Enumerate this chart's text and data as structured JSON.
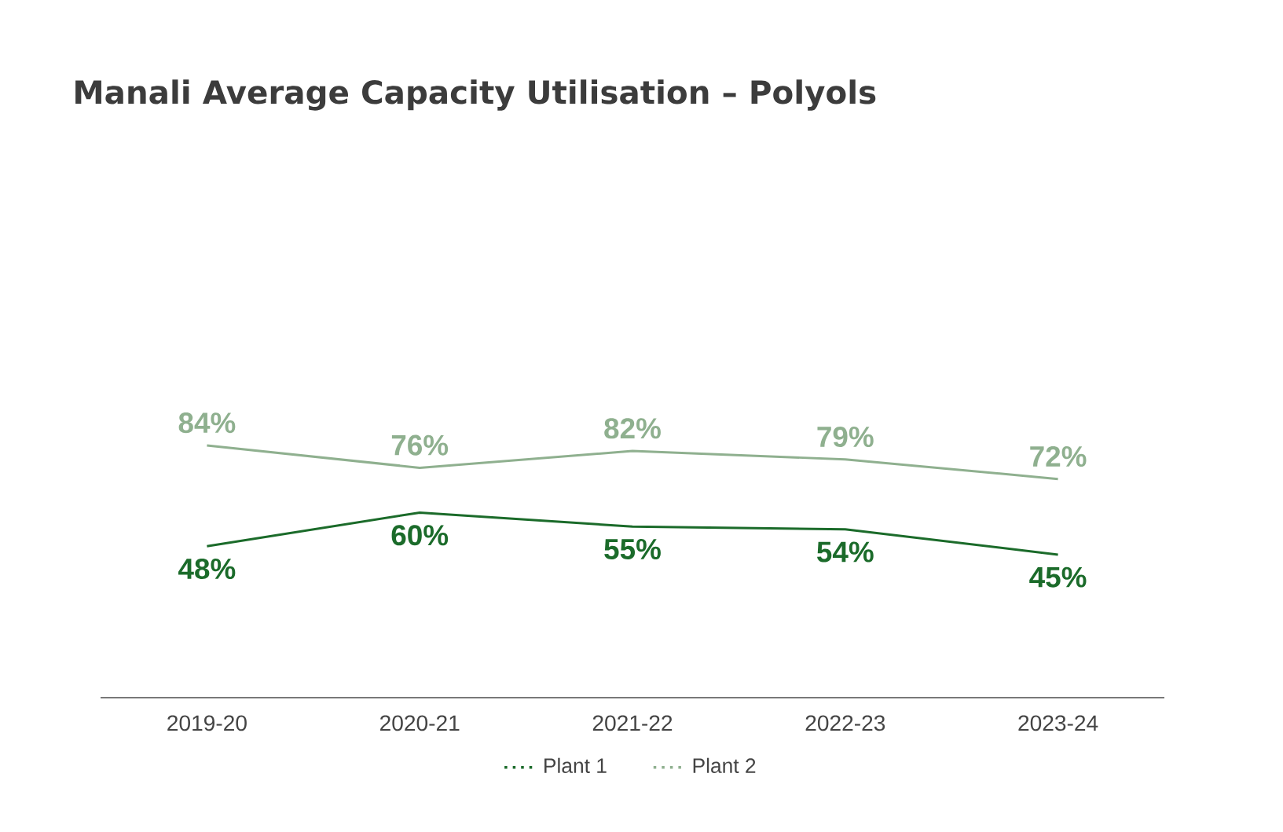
{
  "chart_data": {
    "type": "line",
    "title": "Manali Average Capacity Utilisation – Polyols",
    "categories": [
      "2019-20",
      "2020-21",
      "2021-22",
      "2022-23",
      "2023-24"
    ],
    "series": [
      {
        "name": "Plant 1",
        "color": "#1b6b2a",
        "values": [
          48,
          60,
          55,
          54,
          45
        ],
        "value_labels": [
          "48%",
          "60%",
          "55%",
          "54%",
          "45%"
        ]
      },
      {
        "name": "Plant 2",
        "color": "#8fb08f",
        "values": [
          84,
          76,
          82,
          79,
          72
        ],
        "value_labels": [
          "84%",
          "76%",
          "82%",
          "79%",
          "72%"
        ]
      }
    ],
    "legend": "bottom",
    "marker": "none",
    "line_style": "solid"
  }
}
